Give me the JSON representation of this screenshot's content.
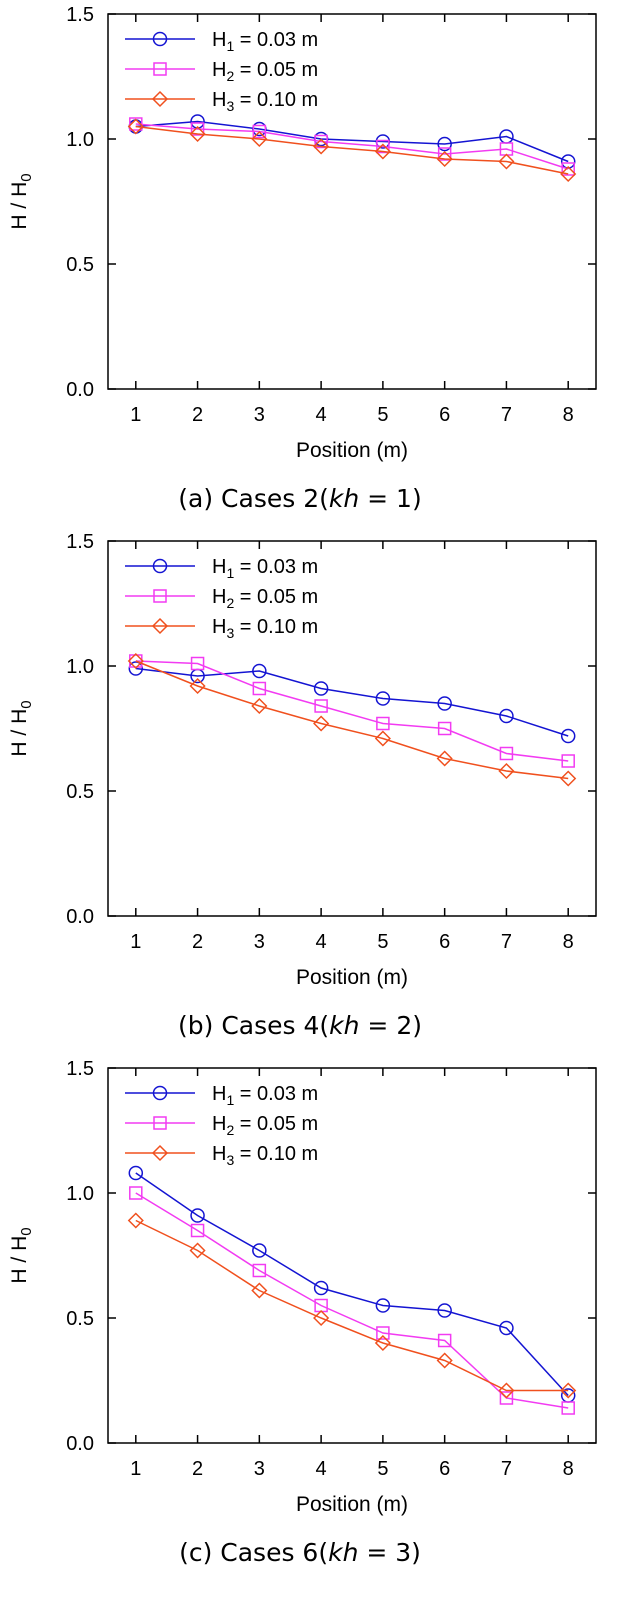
{
  "chart_data": [
    {
      "type": "line",
      "caption": {
        "prefix": "(a) Cases 2(",
        "var": "kh",
        "suffix": " = 1)"
      },
      "xlabel": "Position (m)",
      "ylabel": "H / H",
      "ylabel_sub": "0",
      "xlim": [
        0.55,
        8.45
      ],
      "ylim": [
        0,
        1.5
      ],
      "xticks": [
        "1",
        "2",
        "3",
        "4",
        "5",
        "6",
        "7",
        "8"
      ],
      "yticks": [
        "0.0",
        "0.5",
        "1.0",
        "1.5"
      ],
      "grid": false,
      "legend_position": "top-left",
      "x": [
        1,
        2,
        3,
        4,
        5,
        6,
        7,
        8
      ],
      "series": [
        {
          "name": "H",
          "sub": "1",
          "rest": " = 0.03 m",
          "marker": "circle",
          "color": "#1414d2",
          "values": [
            1.05,
            1.07,
            1.04,
            1.0,
            0.99,
            0.98,
            1.01,
            0.91
          ]
        },
        {
          "name": "H",
          "sub": "2",
          "rest": " = 0.05 m",
          "marker": "square",
          "color": "#f23bf2",
          "values": [
            1.06,
            1.04,
            1.03,
            0.99,
            0.97,
            0.94,
            0.96,
            0.88
          ]
        },
        {
          "name": "H",
          "sub": "3",
          "rest": " = 0.10 m",
          "marker": "diamond",
          "color": "#f0501e",
          "values": [
            1.05,
            1.02,
            1.0,
            0.97,
            0.95,
            0.92,
            0.91,
            0.86
          ]
        }
      ]
    },
    {
      "type": "line",
      "caption": {
        "prefix": "(b) Cases 4(",
        "var": "kh",
        "suffix": " = 2)"
      },
      "xlabel": "Position (m)",
      "ylabel": "H / H",
      "ylabel_sub": "0",
      "xlim": [
        0.55,
        8.45
      ],
      "ylim": [
        0,
        1.5
      ],
      "xticks": [
        "1",
        "2",
        "3",
        "4",
        "5",
        "6",
        "7",
        "8"
      ],
      "yticks": [
        "0.0",
        "0.5",
        "1.0",
        "1.5"
      ],
      "grid": false,
      "legend_position": "top-left",
      "x": [
        1,
        2,
        3,
        4,
        5,
        6,
        7,
        8
      ],
      "series": [
        {
          "name": "H",
          "sub": "1",
          "rest": " = 0.03 m",
          "marker": "circle",
          "color": "#1414d2",
          "values": [
            0.99,
            0.96,
            0.98,
            0.91,
            0.87,
            0.85,
            0.8,
            0.72
          ]
        },
        {
          "name": "H",
          "sub": "2",
          "rest": " = 0.05 m",
          "marker": "square",
          "color": "#f23bf2",
          "values": [
            1.02,
            1.01,
            0.91,
            0.84,
            0.77,
            0.75,
            0.65,
            0.62
          ]
        },
        {
          "name": "H",
          "sub": "3",
          "rest": " = 0.10 m",
          "marker": "diamond",
          "color": "#f0501e",
          "values": [
            1.02,
            0.92,
            0.84,
            0.77,
            0.71,
            0.63,
            0.58,
            0.55
          ]
        }
      ]
    },
    {
      "type": "line",
      "caption": {
        "prefix": "(c) Cases 6(",
        "var": "kh",
        "suffix": " = 3)"
      },
      "xlabel": "Position (m)",
      "ylabel": "H / H",
      "ylabel_sub": "0",
      "xlim": [
        0.55,
        8.45
      ],
      "ylim": [
        0,
        1.5
      ],
      "xticks": [
        "1",
        "2",
        "3",
        "4",
        "5",
        "6",
        "7",
        "8"
      ],
      "yticks": [
        "0.0",
        "0.5",
        "1.0",
        "1.5"
      ],
      "grid": false,
      "legend_position": "top-left",
      "x": [
        1,
        2,
        3,
        4,
        5,
        6,
        7,
        8
      ],
      "series": [
        {
          "name": "H",
          "sub": "1",
          "rest": " = 0.03 m",
          "marker": "circle",
          "color": "#1414d2",
          "values": [
            1.08,
            0.91,
            0.77,
            0.62,
            0.55,
            0.53,
            0.46,
            0.19
          ]
        },
        {
          "name": "H",
          "sub": "2",
          "rest": " = 0.05 m",
          "marker": "square",
          "color": "#f23bf2",
          "values": [
            1.0,
            0.85,
            0.69,
            0.55,
            0.44,
            0.41,
            0.18,
            0.14
          ]
        },
        {
          "name": "H",
          "sub": "3",
          "rest": " = 0.10 m",
          "marker": "diamond",
          "color": "#f0501e",
          "values": [
            0.89,
            0.77,
            0.61,
            0.5,
            0.4,
            0.33,
            0.21,
            0.21
          ]
        }
      ]
    }
  ]
}
